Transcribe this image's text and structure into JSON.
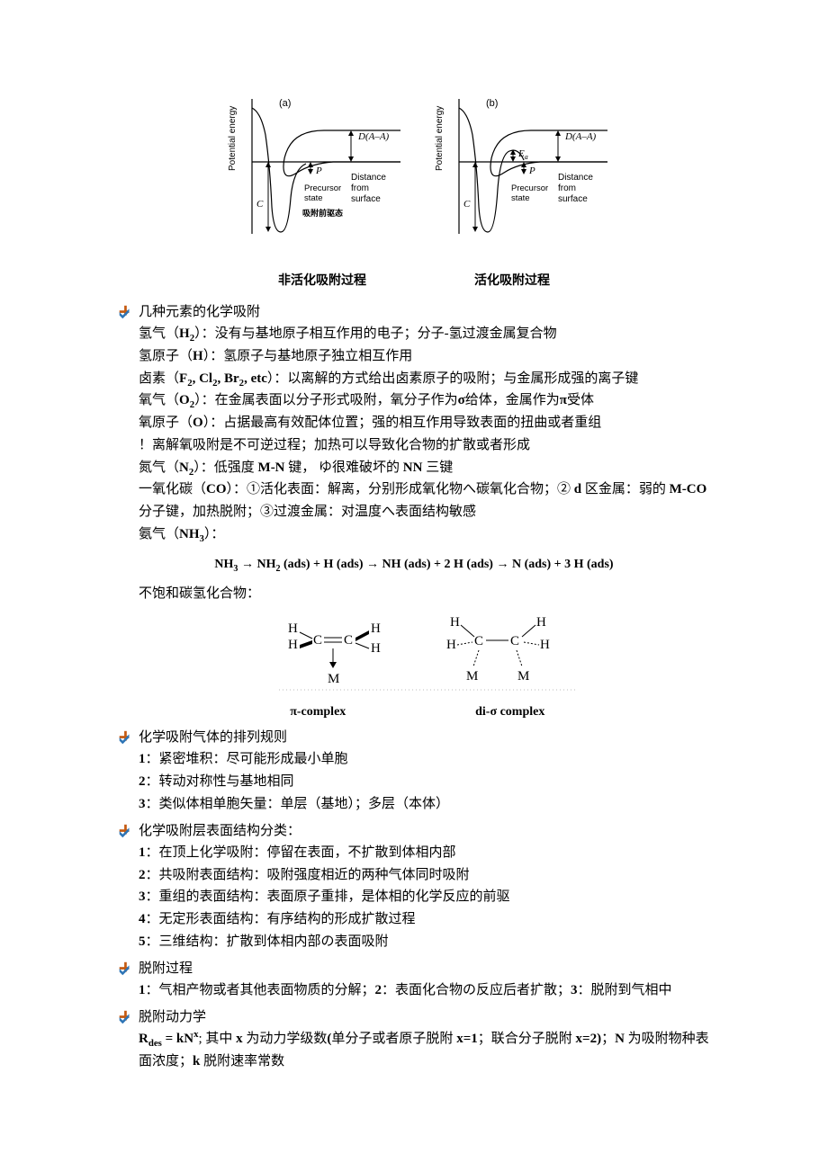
{
  "diagrams": {
    "left": {
      "panel_label": "(a)",
      "ylabel": "Potential energy",
      "curve_labels": {
        "outer": "D(A–A)",
        "precursor": "P",
        "chemi": "C"
      },
      "annotations": {
        "precursor_state": "Precursor state",
        "distance": "Distance from surface",
        "extra_cn": "吸附前驱态"
      },
      "caption": "非活化吸附过程"
    },
    "right": {
      "panel_label": "(b)",
      "ylabel": "Potential energy",
      "curve_labels": {
        "outer": "D(A–A)",
        "precursor": "P",
        "chemi": "C",
        "ea": "Ea"
      },
      "annotations": {
        "precursor_state": "Precursor state",
        "distance": "Distance from surface"
      },
      "caption": "活化吸附过程"
    }
  },
  "sections": [
    {
      "heading": "几种元素的化学吸附",
      "lines": [
        "氢气（<b>H<sub>2</sub></b>）：没有与基地原子相互作用的电子；分子-氢过渡金属复合物",
        "氢原子（<b>H</b>）：氢原子与基地原子独立相互作用",
        "卤素（<b>F<sub>2</sub>, Cl<sub>2</sub>, Br<sub>2</sub>, etc</b>）：以离解的方式给出卤素原子的吸附；与金属形成强的离子键",
        "氧气（<b>O<sub>2</sub></b>）：在金属表面以分子形式吸附，氧分子作为<b>σ</b>给体，金属作为<b>π</b>受体",
        "氧原子（<b>O</b>）：占据最高有效配体位置；强的相互作用导致表面的扭曲或者重组",
        "！离解氧吸附是不可逆过程；加热可以导致化合物的扩散或者形成",
        "氮气（<b>N<sub>2</sub></b>）：低强度 <b>M-N</b> 键，&nbsp;ゆ很难破坏的 <b>NN</b> 三键",
        "一氧化碳（<b>CO</b>）：①活化表面：解离，分别形成氧化物へ碳氧化合物；② <b>d</b> 区金属：弱的 <b>M-CO</b> 分子键，加热脱附；③过渡金属：对温度へ表面结构敏感",
        "氨气（<b>NH<sub>3</sub></b>）："
      ],
      "equation": "NH<sub>3</sub> → NH<sub>2</sub> (ads)  +  H (ads) → NH (ads)  +  2 H (ads) → N (ads)  +  3 H (ads)",
      "trailing_line": "不饱和碳氢化合物：",
      "hc_caption": {
        "left": "π-complex",
        "right": "di-σ complex"
      }
    },
    {
      "heading": "化学吸附气体的排列规则",
      "lines": [
        "<b>1</b>：紧密堆积：尽可能形成最小单胞",
        "<b>2</b>：转动对称性与基地相同",
        "<b>3</b>：类似体相单胞矢量：单层（基地）；多层（本体）"
      ]
    },
    {
      "heading": "化学吸附层表面结构分类：",
      "lines": [
        "<b>1</b>：在顶上化学吸附：停留在表面，不扩散到体相内部",
        "<b>2</b>：共吸附表面结构：吸附强度相近的两种气体同时吸附",
        "<b>3</b>：重组的表面结构：表面原子重排，是体相的化学反应的前驱",
        "<b>4</b>：无定形表面结构：有序结构的形成扩散过程",
        "<b>5</b>：三维结构：扩散到体相内部の表面吸附"
      ]
    },
    {
      "heading": "脱附过程",
      "lines": [
        "<b>1</b>：气相产物或者其他表面物质的分解；<b>2</b>：表面化合物の反应后者扩散；<b>3</b>：脱附到气相中"
      ]
    },
    {
      "heading": "脱附动力学",
      "lines": [
        "<b>R<sub>des</sub> = kN<sup>x</sup></b>; 其中 <b>x</b> 为动力学级数<b>(</b>单分子或者原子脱附 <b>x=1</b>；联合分子脱附 <b>x=2)</b>；<b>N</b> 为吸附物种表面浓度；<b>k</b> 脱附速率常数"
      ]
    }
  ]
}
